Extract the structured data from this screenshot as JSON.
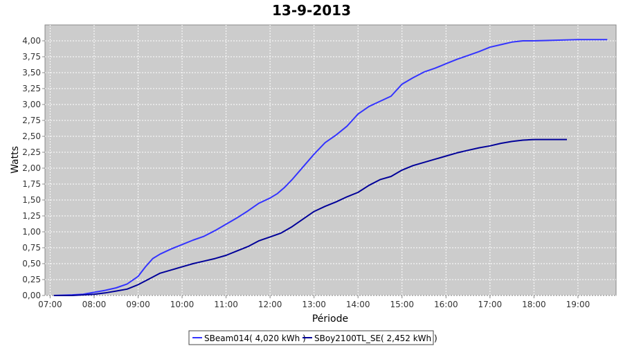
{
  "chart_data": {
    "type": "line",
    "title": "13-9-2013",
    "xlabel": "Période",
    "ylabel": "Watts",
    "xlim": [
      "06:53",
      "19:52"
    ],
    "ylim": [
      0,
      4.25
    ],
    "grid": true,
    "legend_position": "bottom-center",
    "x_ticks": [
      "07:00",
      "08:00",
      "09:00",
      "10:00",
      "11:00",
      "12:00",
      "13:00",
      "14:00",
      "15:00",
      "16:00",
      "17:00",
      "18:00",
      "19:00"
    ],
    "y_ticks": [
      "0,00",
      "0,25",
      "0,50",
      "0,75",
      "1,00",
      "1,25",
      "1,50",
      "1,75",
      "2,00",
      "2,25",
      "2,50",
      "2,75",
      "3,00",
      "3,25",
      "3,50",
      "3,75",
      "4,00"
    ],
    "colors": {
      "plot_background": "#cccccc",
      "grid": "#ffffff"
    },
    "series": [
      {
        "name": "SBeam014( 4,020 kWh )",
        "color": "#3333ff",
        "points": [
          [
            "07:05",
            0.0
          ],
          [
            "07:30",
            0.01
          ],
          [
            "07:45",
            0.02
          ],
          [
            "08:00",
            0.05
          ],
          [
            "08:15",
            0.08
          ],
          [
            "08:30",
            0.12
          ],
          [
            "08:45",
            0.18
          ],
          [
            "09:00",
            0.3
          ],
          [
            "09:10",
            0.45
          ],
          [
            "09:20",
            0.58
          ],
          [
            "09:30",
            0.65
          ],
          [
            "09:45",
            0.73
          ],
          [
            "10:00",
            0.8
          ],
          [
            "10:15",
            0.87
          ],
          [
            "10:30",
            0.93
          ],
          [
            "10:45",
            1.02
          ],
          [
            "11:00",
            1.12
          ],
          [
            "11:15",
            1.22
          ],
          [
            "11:30",
            1.33
          ],
          [
            "11:45",
            1.45
          ],
          [
            "12:00",
            1.53
          ],
          [
            "12:10",
            1.6
          ],
          [
            "12:20",
            1.7
          ],
          [
            "12:30",
            1.82
          ],
          [
            "12:45",
            2.02
          ],
          [
            "13:00",
            2.22
          ],
          [
            "13:15",
            2.4
          ],
          [
            "13:30",
            2.52
          ],
          [
            "13:45",
            2.66
          ],
          [
            "14:00",
            2.85
          ],
          [
            "14:15",
            2.97
          ],
          [
            "14:30",
            3.05
          ],
          [
            "14:45",
            3.13
          ],
          [
            "15:00",
            3.32
          ],
          [
            "15:15",
            3.42
          ],
          [
            "15:30",
            3.51
          ],
          [
            "15:45",
            3.57
          ],
          [
            "16:00",
            3.64
          ],
          [
            "16:15",
            3.71
          ],
          [
            "16:30",
            3.77
          ],
          [
            "16:45",
            3.83
          ],
          [
            "17:00",
            3.9
          ],
          [
            "17:15",
            3.94
          ],
          [
            "17:30",
            3.98
          ],
          [
            "17:45",
            4.0
          ],
          [
            "18:00",
            4.0
          ],
          [
            "18:30",
            4.01
          ],
          [
            "19:00",
            4.02
          ],
          [
            "19:30",
            4.02
          ],
          [
            "19:40",
            4.02
          ]
        ]
      },
      {
        "name": "SBoy2100TL_SE( 2,452 kWh )",
        "color": "#000099",
        "points": [
          [
            "07:05",
            0.0
          ],
          [
            "07:30",
            0.0
          ],
          [
            "07:45",
            0.01
          ],
          [
            "08:00",
            0.02
          ],
          [
            "08:15",
            0.04
          ],
          [
            "08:30",
            0.07
          ],
          [
            "08:45",
            0.1
          ],
          [
            "09:00",
            0.17
          ],
          [
            "09:15",
            0.26
          ],
          [
            "09:30",
            0.35
          ],
          [
            "09:45",
            0.4
          ],
          [
            "10:00",
            0.45
          ],
          [
            "10:15",
            0.5
          ],
          [
            "10:30",
            0.54
          ],
          [
            "10:45",
            0.58
          ],
          [
            "11:00",
            0.63
          ],
          [
            "11:15",
            0.7
          ],
          [
            "11:30",
            0.77
          ],
          [
            "11:45",
            0.86
          ],
          [
            "12:00",
            0.92
          ],
          [
            "12:15",
            0.98
          ],
          [
            "12:30",
            1.08
          ],
          [
            "12:45",
            1.2
          ],
          [
            "13:00",
            1.32
          ],
          [
            "13:15",
            1.4
          ],
          [
            "13:30",
            1.47
          ],
          [
            "13:45",
            1.55
          ],
          [
            "14:00",
            1.62
          ],
          [
            "14:15",
            1.73
          ],
          [
            "14:30",
            1.82
          ],
          [
            "14:45",
            1.87
          ],
          [
            "15:00",
            1.97
          ],
          [
            "15:15",
            2.04
          ],
          [
            "15:30",
            2.09
          ],
          [
            "15:45",
            2.14
          ],
          [
            "16:00",
            2.19
          ],
          [
            "16:15",
            2.24
          ],
          [
            "16:30",
            2.28
          ],
          [
            "16:45",
            2.32
          ],
          [
            "17:00",
            2.35
          ],
          [
            "17:15",
            2.39
          ],
          [
            "17:30",
            2.42
          ],
          [
            "17:45",
            2.44
          ],
          [
            "18:00",
            2.45
          ],
          [
            "18:30",
            2.45
          ],
          [
            "18:45",
            2.45
          ]
        ]
      }
    ]
  }
}
